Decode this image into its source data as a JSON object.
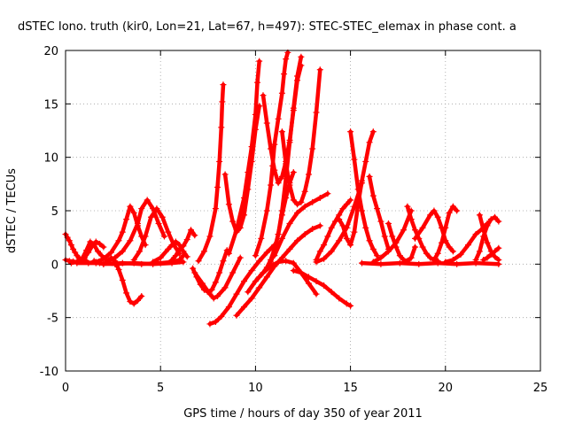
{
  "chart_data": {
    "type": "scatter",
    "title": "dSTEC Iono. truth (kir0, Lon=21, Lat=67, h=497): STEC-STEC_elemax in phase cont. a",
    "xlabel": "GPS time / hours of day 350 of year 2011",
    "ylabel": "dSTEC  / TECUs",
    "xlim": [
      0,
      25
    ],
    "ylim": [
      -10,
      20
    ],
    "xticks": [
      0,
      5,
      10,
      15,
      20,
      25
    ],
    "yticks": [
      -10,
      -5,
      0,
      5,
      10,
      15,
      20
    ],
    "grid": true,
    "marker": "plus",
    "color": "#ff0000",
    "series": [
      {
        "x": [
          0.0,
          0.1,
          0.2,
          0.3,
          0.4,
          0.5,
          0.6,
          0.7,
          0.9,
          1.1
        ],
        "y": [
          2.8,
          2.5,
          2.2,
          1.8,
          1.4,
          1.1,
          0.8,
          0.6,
          0.4,
          0.3
        ]
      },
      {
        "x": [
          0.0,
          0.2,
          0.4,
          0.6,
          0.8,
          1.0,
          1.2,
          1.4,
          1.6,
          1.8,
          2.0
        ],
        "y": [
          0.4,
          0.3,
          0.25,
          0.2,
          0.3,
          0.6,
          1.1,
          1.7,
          2.1,
          1.9,
          1.6
        ]
      },
      {
        "x": [
          0.3,
          0.6,
          0.9,
          1.1,
          1.3,
          1.5,
          1.7,
          1.9,
          2.1,
          2.3
        ],
        "y": [
          0.1,
          0.2,
          0.6,
          1.3,
          2.1,
          1.8,
          1.2,
          0.8,
          0.5,
          0.3
        ]
      },
      {
        "x": [
          1.2,
          1.6,
          2.0,
          2.4,
          2.8,
          3.0,
          3.2,
          3.4,
          3.6,
          3.8,
          4.0,
          4.2
        ],
        "y": [
          0.1,
          0.2,
          0.5,
          1.1,
          2.2,
          3.0,
          4.2,
          5.4,
          4.8,
          3.6,
          2.6,
          1.8
        ]
      },
      {
        "x": [
          1.5,
          1.8,
          2.0,
          2.2,
          2.4,
          2.6,
          2.8,
          3.0,
          3.2,
          3.4,
          3.6,
          3.8,
          4.0
        ],
        "y": [
          0.3,
          0.1,
          0.0,
          0.2,
          0.6,
          0.3,
          -0.5,
          -1.5,
          -2.7,
          -3.5,
          -3.7,
          -3.4,
          -3.0
        ]
      },
      {
        "x": [
          2.2,
          2.6,
          3.0,
          3.4,
          3.8,
          4.0,
          4.3,
          4.6,
          4.9,
          5.2
        ],
        "y": [
          0.3,
          0.6,
          1.2,
          2.2,
          3.8,
          5.2,
          6.0,
          5.2,
          3.8,
          2.6
        ]
      },
      {
        "x": [
          3.6,
          3.9,
          4.2,
          4.5,
          4.8,
          5.1,
          5.4,
          5.7,
          6.0
        ],
        "y": [
          0.4,
          1.2,
          2.6,
          4.4,
          5.2,
          4.4,
          3.0,
          1.8,
          1.0
        ]
      },
      {
        "x": [
          4.6,
          5.0,
          5.4,
          5.6,
          5.8,
          6.0,
          6.2,
          6.4
        ],
        "y": [
          0.2,
          0.6,
          1.4,
          1.8,
          2.1,
          1.8,
          1.2,
          0.7
        ]
      },
      {
        "x": [
          5.6,
          5.8,
          6.0,
          6.2,
          6.4,
          6.6,
          6.8
        ],
        "y": [
          0.4,
          0.8,
          1.4,
          1.7,
          2.3,
          3.2,
          2.7
        ]
      },
      {
        "x": [
          2.0,
          3.0,
          4.0,
          5.0,
          5.6,
          6.0,
          6.2
        ],
        "y": [
          0.0,
          0.1,
          0.0,
          0.1,
          0.2,
          0.4,
          0.8
        ]
      },
      {
        "x": [
          6.7,
          6.9,
          7.1,
          7.3,
          7.5,
          7.7,
          7.9,
          8.1,
          8.3,
          8.5
        ],
        "y": [
          -0.4,
          -1.2,
          -1.9,
          -2.4,
          -2.6,
          -2.4,
          -1.7,
          -0.8,
          0.3,
          1.3
        ]
      },
      {
        "x": [
          7.0,
          7.3,
          7.6,
          7.9,
          8.0,
          8.1,
          8.2,
          8.25,
          8.3
        ],
        "y": [
          0.3,
          1.2,
          2.6,
          5.2,
          7.2,
          9.6,
          12.8,
          15.2,
          16.8
        ]
      },
      {
        "x": [
          6.8,
          7.2,
          7.6,
          7.8,
          8.0,
          8.4,
          8.8,
          9.2
        ],
        "y": [
          -0.8,
          -1.8,
          -2.8,
          -3.2,
          -3.0,
          -2.2,
          -0.8,
          0.6
        ]
      },
      {
        "x": [
          7.6,
          7.9,
          8.2,
          8.6,
          9.0,
          9.4,
          9.8,
          10.2,
          10.6,
          11.0
        ],
        "y": [
          -5.6,
          -5.4,
          -4.9,
          -4.0,
          -2.8,
          -1.6,
          -0.6,
          0.3,
          1.1,
          1.8
        ]
      },
      {
        "x": [
          8.4,
          8.6,
          8.8,
          9.0,
          9.2,
          9.4,
          9.6,
          9.8,
          10.0,
          10.2
        ],
        "y": [
          8.4,
          5.6,
          4.0,
          3.0,
          3.4,
          4.6,
          7.0,
          9.6,
          12.6,
          14.8
        ]
      },
      {
        "x": [
          8.6,
          9.0,
          9.4,
          9.6,
          9.8,
          10.0,
          10.1,
          10.2
        ],
        "y": [
          1.0,
          3.2,
          6.2,
          8.6,
          11.0,
          14.0,
          17.0,
          19.0
        ]
      },
      {
        "x": [
          9.0,
          9.4,
          9.8,
          10.2,
          10.6,
          11.0,
          11.4,
          11.8,
          12.2,
          12.6,
          13.0,
          13.4
        ],
        "y": [
          -4.8,
          -4.0,
          -3.2,
          -2.2,
          -1.2,
          -0.2,
          0.6,
          1.4,
          2.2,
          2.8,
          3.3,
          3.6
        ]
      },
      {
        "x": [
          10.0,
          10.3,
          10.6,
          10.8,
          10.9,
          11.0,
          11.2,
          11.4,
          11.5,
          11.6,
          11.7
        ],
        "y": [
          0.8,
          2.4,
          5.0,
          7.4,
          9.2,
          11.2,
          13.6,
          16.0,
          17.8,
          19.2,
          19.8
        ]
      },
      {
        "x": [
          10.4,
          10.6,
          10.8,
          11.0,
          11.2,
          11.4,
          11.6,
          11.8,
          12.0,
          12.2,
          12.4
        ],
        "y": [
          15.8,
          13.2,
          10.8,
          8.8,
          7.6,
          8.2,
          9.6,
          11.6,
          14.4,
          17.2,
          18.6
        ]
      },
      {
        "x": [
          11.4,
          11.6,
          11.8,
          12.0,
          12.2,
          12.4,
          12.6,
          12.8,
          13.0,
          13.2,
          13.4
        ],
        "y": [
          12.4,
          9.4,
          7.4,
          6.0,
          5.6,
          5.8,
          6.8,
          8.4,
          10.8,
          14.2,
          18.2
        ]
      },
      {
        "x": [
          10.2,
          10.4,
          10.6,
          10.8,
          11.0,
          11.2,
          11.4,
          11.6,
          11.8,
          12.0
        ],
        "y": [
          -1.2,
          -0.8,
          -0.3,
          0.4,
          1.4,
          2.8,
          4.6,
          6.2,
          7.6,
          8.6
        ]
      },
      {
        "x": [
          10.8,
          11.0,
          11.2,
          11.4,
          11.6,
          11.8,
          12.0,
          12.2,
          12.4
        ],
        "y": [
          0.2,
          1.2,
          2.8,
          5.0,
          8.0,
          11.4,
          14.6,
          17.6,
          19.4
        ]
      },
      {
        "x": [
          11.0,
          11.4,
          11.8,
          12.2,
          12.6,
          13.0,
          13.4,
          13.8
        ],
        "y": [
          0.8,
          2.4,
          3.8,
          4.8,
          5.4,
          5.8,
          6.2,
          6.6
        ]
      },
      {
        "x": [
          13.2,
          13.4,
          13.6,
          13.8,
          14.0,
          14.2,
          14.4,
          14.6,
          14.8,
          15.0
        ],
        "y": [
          0.4,
          1.2,
          1.8,
          2.6,
          3.4,
          4.0,
          4.6,
          5.2,
          5.6,
          6.0
        ]
      },
      {
        "x": [
          12.0,
          12.4,
          12.8,
          13.2,
          13.6,
          14.0,
          14.4,
          14.8,
          15.0
        ],
        "y": [
          -0.6,
          -0.8,
          -1.2,
          -1.6,
          -2.0,
          -2.6,
          -3.2,
          -3.7,
          -3.9
        ]
      },
      {
        "x": [
          9.6,
          10.0,
          10.4,
          10.8,
          11.2,
          11.6,
          12.0,
          12.4,
          12.8,
          13.2
        ],
        "y": [
          -2.6,
          -1.6,
          -0.8,
          -0.2,
          0.2,
          0.3,
          0.1,
          -0.8,
          -1.8,
          -2.8
        ]
      },
      {
        "x": [
          13.2,
          13.6,
          14.0,
          14.4,
          14.8,
          15.2,
          15.6
        ],
        "y": [
          0.2,
          0.5,
          1.2,
          2.2,
          3.4,
          5.4,
          7.6
        ]
      },
      {
        "x": [
          14.4,
          14.6,
          14.8,
          15.0,
          15.2,
          15.4,
          15.6,
          15.8,
          16.0,
          16.2
        ],
        "y": [
          4.2,
          3.6,
          2.4,
          1.8,
          3.0,
          5.6,
          7.8,
          9.6,
          11.4,
          12.4
        ]
      },
      {
        "x": [
          15.0,
          15.2,
          15.4,
          15.6,
          15.8,
          16.0,
          16.2,
          16.4
        ],
        "y": [
          12.4,
          9.8,
          7.0,
          5.0,
          3.4,
          2.2,
          1.4,
          0.8
        ]
      },
      {
        "x": [
          16.0,
          16.2,
          16.4,
          16.6,
          16.8,
          17.0
        ],
        "y": [
          8.2,
          6.4,
          5.2,
          4.0,
          2.6,
          1.4
        ]
      },
      {
        "x": [
          16.2,
          16.6,
          17.0,
          17.4,
          17.8,
          18.2
        ],
        "y": [
          0.2,
          0.6,
          1.2,
          2.0,
          3.2,
          5.0
        ]
      },
      {
        "x": [
          17.0,
          17.2,
          17.4,
          17.6,
          17.8,
          18.0,
          18.2,
          18.4
        ],
        "y": [
          3.8,
          2.6,
          1.6,
          0.8,
          0.4,
          0.3,
          0.6,
          1.6
        ]
      },
      {
        "x": [
          18.0,
          18.2,
          18.4,
          18.6,
          18.8,
          19.0,
          19.2,
          19.4,
          19.6
        ],
        "y": [
          5.4,
          4.2,
          3.2,
          2.4,
          1.6,
          1.0,
          0.6,
          0.4,
          0.3
        ]
      },
      {
        "x": [
          18.4,
          18.8,
          19.2,
          19.4,
          19.6,
          19.8,
          20.0,
          20.2,
          20.4
        ],
        "y": [
          2.4,
          3.4,
          4.6,
          5.0,
          4.4,
          3.4,
          2.2,
          1.6,
          1.2
        ]
      },
      {
        "x": [
          19.4,
          19.6,
          19.8,
          20.0,
          20.2,
          20.4,
          20.6
        ],
        "y": [
          0.4,
          1.0,
          2.0,
          3.4,
          4.8,
          5.4,
          5.0
        ]
      },
      {
        "x": [
          20.0,
          20.4,
          20.8,
          21.2,
          21.6,
          22.0,
          22.2
        ],
        "y": [
          0.2,
          0.4,
          0.9,
          1.8,
          2.8,
          3.4,
          3.8
        ]
      },
      {
        "x": [
          21.6,
          21.8,
          22.0,
          22.2,
          22.4,
          22.6,
          22.8
        ],
        "y": [
          0.4,
          1.2,
          2.6,
          3.6,
          4.2,
          4.4,
          4.0
        ]
      },
      {
        "x": [
          21.8,
          22.0,
          22.2,
          22.4,
          22.6,
          22.8
        ],
        "y": [
          4.6,
          3.2,
          2.0,
          1.2,
          0.7,
          0.4
        ]
      },
      {
        "x": [
          22.0,
          22.2,
          22.4,
          22.6,
          22.8
        ],
        "y": [
          0.4,
          0.6,
          0.9,
          1.2,
          1.5
        ]
      },
      {
        "x": [
          15.6,
          16.6,
          17.6,
          18.6,
          19.6,
          20.6,
          21.6,
          22.8
        ],
        "y": [
          0.1,
          0.0,
          0.1,
          0.0,
          0.1,
          0.0,
          0.1,
          0.0
        ]
      },
      {
        "x": [
          0.6,
          1.6,
          2.6,
          3.6,
          4.6,
          5.6,
          6.2
        ],
        "y": [
          0.1,
          0.1,
          0.0,
          0.1,
          0.0,
          0.1,
          0.2
        ]
      }
    ]
  }
}
